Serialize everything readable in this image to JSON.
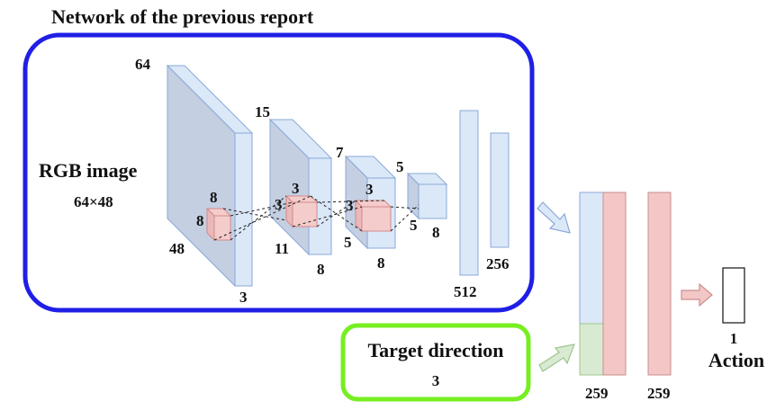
{
  "title": "Network of the previous report",
  "input": {
    "name": "RGB image",
    "size": "64×48"
  },
  "conv": {
    "layer1": {
      "height": "64",
      "width": "48",
      "depth": "3",
      "kernel_h": "8",
      "kernel_w": "8"
    },
    "layer2": {
      "height": "15",
      "width": "11",
      "depth": "8",
      "kernel_h": "3",
      "kernel_w": "3"
    },
    "layer3": {
      "height": "7",
      "width": "5",
      "depth": "8",
      "kernel_h": "3",
      "kernel_w": "3"
    },
    "layer4": {
      "height": "5",
      "width": "5",
      "depth": "8"
    }
  },
  "fc": {
    "fc1": "512",
    "fc2": "256"
  },
  "target": {
    "name": "Target direction",
    "size": "3"
  },
  "concat": {
    "a": "259",
    "b": "259"
  },
  "output": {
    "size": "1",
    "name": "Action"
  },
  "colors": {
    "prev_box": "#1f1fe6",
    "target_box": "#77ee22",
    "layer_fill": "#dbe8f8",
    "layer_side": "#c4cfe2",
    "layer_stroke": "#8aa8d8",
    "kernel_fill": "#f4cccc",
    "kernel_stroke": "#d48a8a",
    "red_bar": "#f4c7c7",
    "green_bar": "#d9ead3"
  }
}
